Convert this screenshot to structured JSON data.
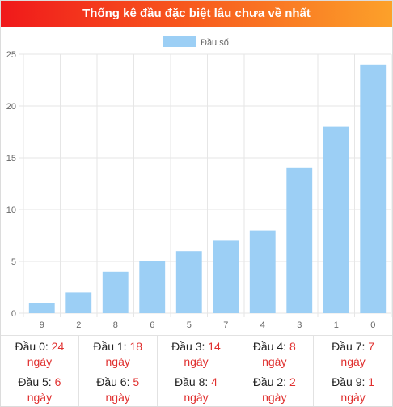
{
  "header": {
    "title": "Thống kê đầu đặc biệt lâu chưa về nhất"
  },
  "chart_data": {
    "type": "bar",
    "legend": {
      "label": "Đầu số",
      "position": "top"
    },
    "categories": [
      "9",
      "2",
      "8",
      "6",
      "5",
      "7",
      "4",
      "3",
      "1",
      "0"
    ],
    "series": [
      {
        "name": "Đầu số",
        "color": "#9ccff5",
        "values": [
          1,
          2,
          4,
          5,
          6,
          7,
          8,
          14,
          18,
          24
        ]
      }
    ],
    "y_ticks": [
      "0",
      "5",
      "10",
      "15",
      "20",
      "25"
    ],
    "ylim": [
      0,
      25
    ],
    "grid": true
  },
  "stats": {
    "unit": "ngày",
    "items": [
      {
        "label": "Đầu 0:",
        "value": "24"
      },
      {
        "label": "Đầu 1:",
        "value": "18"
      },
      {
        "label": "Đầu 3:",
        "value": "14"
      },
      {
        "label": "Đầu 4:",
        "value": "8"
      },
      {
        "label": "Đầu 7:",
        "value": "7"
      },
      {
        "label": "Đầu 5:",
        "value": "6"
      },
      {
        "label": "Đầu 6:",
        "value": "5"
      },
      {
        "label": "Đầu 8:",
        "value": "4"
      },
      {
        "label": "Đầu 2:",
        "value": "2"
      },
      {
        "label": "Đầu 9:",
        "value": "1"
      }
    ]
  }
}
